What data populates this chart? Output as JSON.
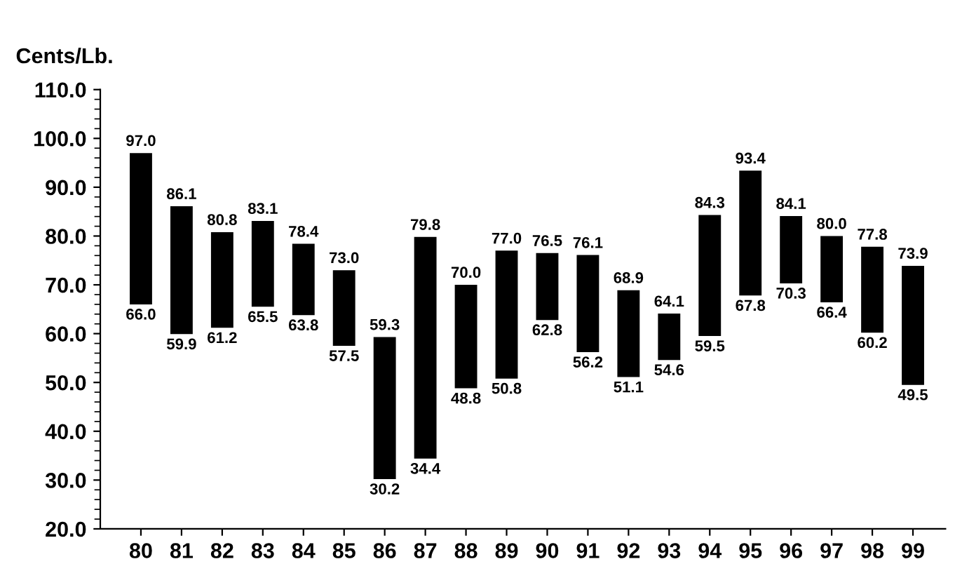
{
  "chart_data": {
    "type": "bar",
    "ylabel": "Cents/Lb.",
    "categories": [
      "80",
      "81",
      "82",
      "83",
      "84",
      "85",
      "86",
      "87",
      "88",
      "89",
      "90",
      "91",
      "92",
      "93",
      "94",
      "95",
      "96",
      "97",
      "98",
      "99"
    ],
    "base": [
      66.0,
      59.9,
      61.2,
      65.5,
      63.8,
      57.5,
      30.2,
      34.4,
      48.8,
      50.8,
      62.8,
      56.2,
      51.1,
      54.6,
      59.5,
      67.8,
      70.3,
      66.4,
      60.2,
      49.5
    ],
    "values": [
      31.0,
      26.2,
      19.6,
      17.6,
      14.6,
      15.5,
      29.1,
      45.4,
      21.2,
      26.2,
      13.7,
      19.9,
      17.8,
      9.5,
      24.8,
      25.6,
      13.8,
      13.6,
      17.6,
      24.4
    ],
    "color": "#000000",
    "ylim": [
      20,
      110
    ],
    "yticks": [
      {
        "value": 20,
        "label": "20.0"
      },
      {
        "value": 30,
        "label": "30.0"
      },
      {
        "value": 40,
        "label": "40.0"
      },
      {
        "value": 50,
        "label": "50.0"
      },
      {
        "value": 60,
        "label": "60.0"
      },
      {
        "value": 70,
        "label": "70.0"
      },
      {
        "value": 80,
        "label": "80.0"
      },
      {
        "value": 90,
        "label": "90.0"
      },
      {
        "value": 100,
        "label": "100.0"
      },
      {
        "value": 110,
        "label": "110.0"
      }
    ],
    "annotations": [
      {
        "text": "97.0",
        "x": "80",
        "y": 97.0
      },
      {
        "text": "66.0",
        "x": "80",
        "y": 66.0
      },
      {
        "text": "86.1",
        "x": "81",
        "y": 86.1
      },
      {
        "text": "59.9",
        "x": "81",
        "y": 59.9
      },
      {
        "text": "80.8",
        "x": "82",
        "y": 80.8
      },
      {
        "text": "61.2",
        "x": "82",
        "y": 61.2
      },
      {
        "text": "83.1",
        "x": "83",
        "y": 83.1
      },
      {
        "text": "65.5",
        "x": "83",
        "y": 65.5
      },
      {
        "text": "78.4",
        "x": "84",
        "y": 78.4
      },
      {
        "text": "63.8",
        "x": "84",
        "y": 63.8
      },
      {
        "text": "73.0",
        "x": "85",
        "y": 73.0
      },
      {
        "text": "57.5",
        "x": "85",
        "y": 57.5
      },
      {
        "text": "59.3",
        "x": "86",
        "y": 59.3
      },
      {
        "text": "30.2",
        "x": "86",
        "y": 30.2
      },
      {
        "text": "79.8",
        "x": "87",
        "y": 79.8
      },
      {
        "text": "34.4",
        "x": "87",
        "y": 34.4
      },
      {
        "text": "70.0",
        "x": "88",
        "y": 70.0
      },
      {
        "text": "48.8",
        "x": "88",
        "y": 48.8
      },
      {
        "text": "77.0",
        "x": "89",
        "y": 77.0
      },
      {
        "text": "50.8",
        "x": "89",
        "y": 50.8
      },
      {
        "text": "76.5",
        "x": "90",
        "y": 76.5
      },
      {
        "text": "62.8",
        "x": "90",
        "y": 62.8
      },
      {
        "text": "76.1",
        "x": "91",
        "y": 76.1
      },
      {
        "text": "56.2",
        "x": "91",
        "y": 56.2
      },
      {
        "text": "68.9",
        "x": "92",
        "y": 68.9
      },
      {
        "text": "51.1",
        "x": "92",
        "y": 51.1
      },
      {
        "text": "64.1",
        "x": "93",
        "y": 64.1
      },
      {
        "text": "54.6",
        "x": "93",
        "y": 54.6
      },
      {
        "text": "84.3",
        "x": "94",
        "y": 84.3
      },
      {
        "text": "59.5",
        "x": "94",
        "y": 59.5
      },
      {
        "text": "93.4",
        "x": "95",
        "y": 93.4
      },
      {
        "text": "67.8",
        "x": "95",
        "y": 67.8
      },
      {
        "text": "84.1",
        "x": "96",
        "y": 84.1
      },
      {
        "text": "70.3",
        "x": "96",
        "y": 70.3
      },
      {
        "text": "80.0",
        "x": "97",
        "y": 80.0
      },
      {
        "text": "66.4",
        "x": "97",
        "y": 66.4
      },
      {
        "text": "77.8",
        "x": "98",
        "y": 77.8
      },
      {
        "text": "60.2",
        "x": "98",
        "y": 60.2
      },
      {
        "text": "73.9",
        "x": "99",
        "y": 73.9
      },
      {
        "text": "49.5",
        "x": "99",
        "y": 49.5
      }
    ]
  }
}
